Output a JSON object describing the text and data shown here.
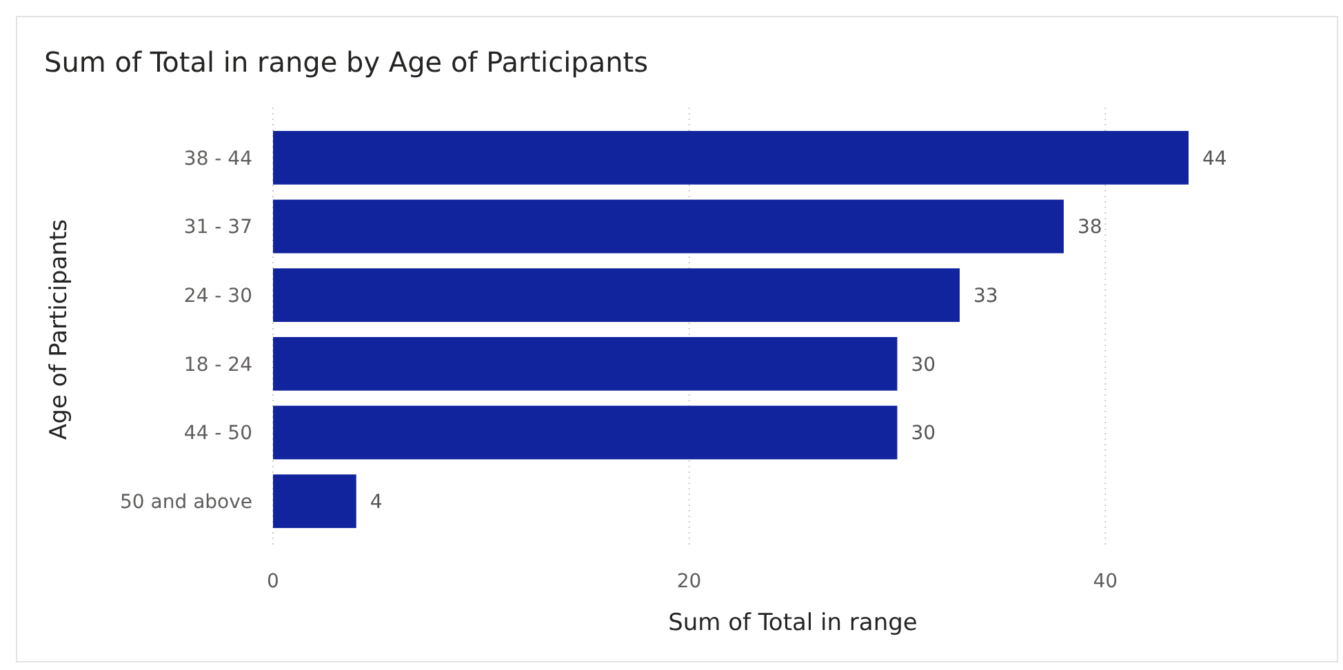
{
  "chart_data": {
    "type": "bar",
    "orientation": "horizontal",
    "title": "Sum of Total in range by Age of Participants",
    "xlabel": "Sum of Total in range",
    "ylabel": "Age of Participants",
    "categories": [
      "38 - 44",
      "31 - 37",
      "24 - 30",
      "18 - 24",
      "44 - 50",
      "50 and above"
    ],
    "values": [
      44,
      38,
      33,
      30,
      30,
      4
    ],
    "color": "#12239e",
    "xlim": [
      0,
      44
    ],
    "xticks": [
      0,
      20,
      40
    ],
    "grid": "x",
    "data_labels": true
  }
}
